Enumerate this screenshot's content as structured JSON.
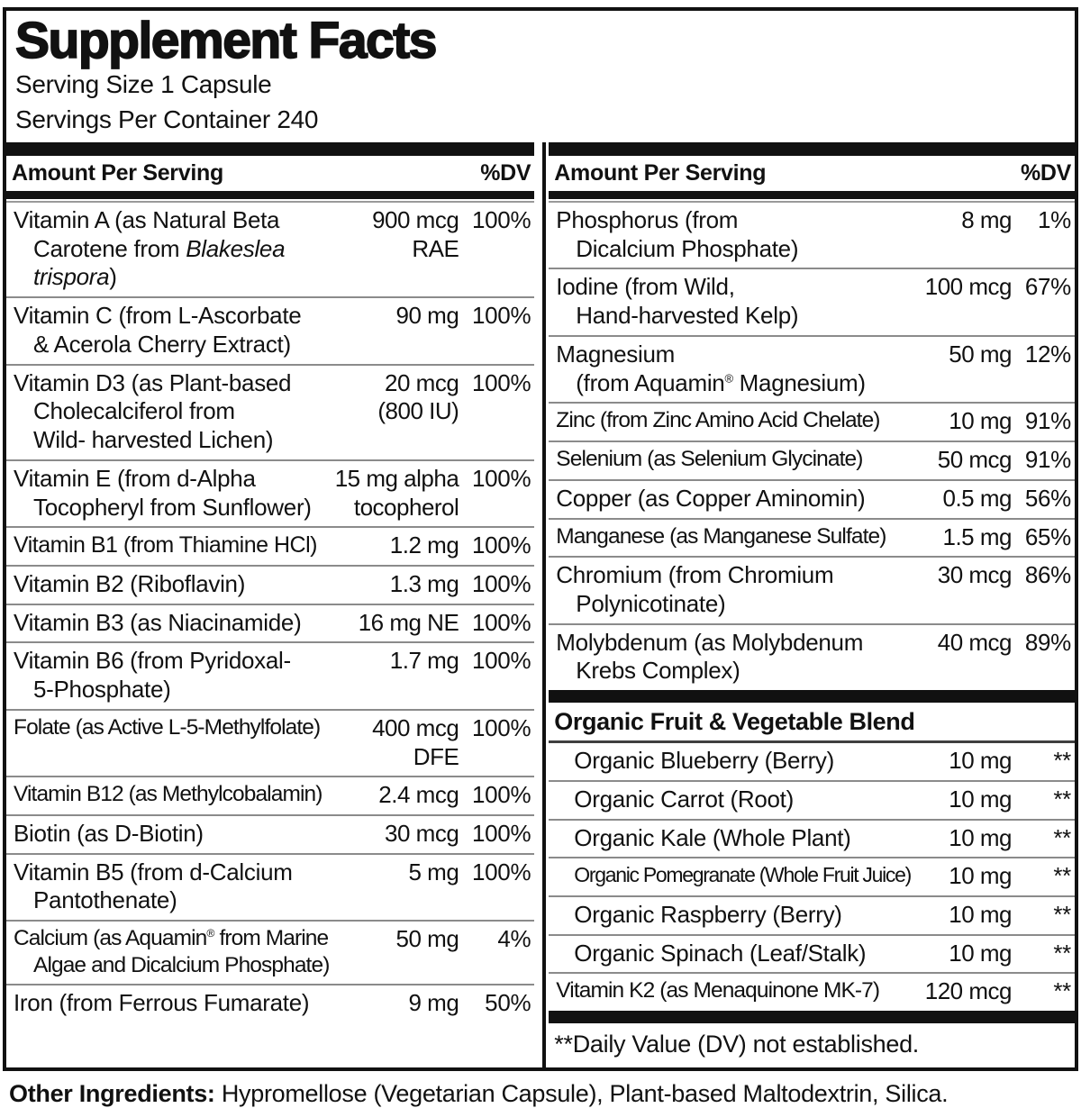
{
  "label": {
    "title": "Supplement Facts",
    "serving_size": "Serving Size 1 Capsule",
    "servings_per_container": "Servings Per Container 240",
    "header": {
      "amount_col": "Amount Per Serving",
      "dv_col": "%DV"
    },
    "left_column": [
      {
        "name": [
          {
            "t": "Vitamin A (as Natural Beta\nCarotene from "
          },
          {
            "t": "Blakeslea\ntrispora",
            "i": true
          },
          {
            "t": ")"
          }
        ],
        "amount": "900 mcg\nRAE",
        "dv": "100%"
      },
      {
        "name": [
          {
            "t": "Vitamin C (from L-Ascorbate\n& Acerola Cherry Extract)"
          }
        ],
        "amount": "90 mg",
        "dv": "100%"
      },
      {
        "name": [
          {
            "t": "Vitamin D3 (as Plant-based\nCholecalciferol from\nWild- harvested Lichen)"
          }
        ],
        "amount": "20 mcg\n(800 IU)",
        "dv": "100%"
      },
      {
        "name": [
          {
            "t": "Vitamin E (from d-Alpha\nTocopheryl from Sunflower)"
          }
        ],
        "amount": "15 mg alpha\ntocopherol",
        "dv": "100%"
      },
      {
        "name": [
          {
            "t": "Vitamin B1 (from Thiamine HCl)"
          }
        ],
        "amount": "1.2 mg",
        "dv": "100%"
      },
      {
        "name": [
          {
            "t": "Vitamin B2 (Riboflavin)"
          }
        ],
        "amount": "1.3 mg",
        "dv": "100%"
      },
      {
        "name": [
          {
            "t": "Vitamin B3 (as Niacinamide)"
          }
        ],
        "amount": "16 mg NE",
        "dv": "100%"
      },
      {
        "name": [
          {
            "t": "Vitamin B6 (from Pyridoxal-\n5-Phosphate)"
          }
        ],
        "amount": "1.7 mg",
        "dv": "100%"
      },
      {
        "name": [
          {
            "t": "Folate (as Active L-5-Methylfolate)"
          }
        ],
        "amount": "400 mcg\nDFE",
        "dv": "100%"
      },
      {
        "name": [
          {
            "t": "Vitamin B12 (as Methylcobalamin)"
          }
        ],
        "amount": "2.4 mcg",
        "dv": "100%"
      },
      {
        "name": [
          {
            "t": "Biotin (as D-Biotin)"
          }
        ],
        "amount": "30 mcg",
        "dv": "100%"
      },
      {
        "name": [
          {
            "t": "Vitamin B5 (from d-Calcium\nPantothenate)"
          }
        ],
        "amount": "5 mg",
        "dv": "100%"
      },
      {
        "name": [
          {
            "t": "Calcium (as Aquamin® from Marine\nAlgae and Dicalcium Phosphate)"
          }
        ],
        "amount": "50 mg",
        "dv": "4%"
      },
      {
        "name": [
          {
            "t": "Iron (from Ferrous Fumarate)"
          }
        ],
        "amount": "9 mg",
        "dv": "50%"
      }
    ],
    "right_column": [
      {
        "name": [
          {
            "t": "Phosphorus (from\nDicalcium Phosphate)"
          }
        ],
        "amount": "8 mg",
        "dv": "1%"
      },
      {
        "name": [
          {
            "t": "Iodine (from Wild,\nHand-harvested Kelp)"
          }
        ],
        "amount": "100 mcg",
        "dv": "67%"
      },
      {
        "name": [
          {
            "t": "Magnesium\n(from Aquamin® Magnesium)"
          }
        ],
        "amount": "50 mg",
        "dv": "12%"
      },
      {
        "name": [
          {
            "t": "Zinc (from Zinc Amino Acid Chelate)"
          }
        ],
        "amount": "10 mg",
        "dv": "91%"
      },
      {
        "name": [
          {
            "t": "Selenium (as Selenium Glycinate)"
          }
        ],
        "amount": "50 mcg",
        "dv": "91%"
      },
      {
        "name": [
          {
            "t": "Copper (as Copper Aminomin)"
          }
        ],
        "amount": "0.5 mg",
        "dv": "56%"
      },
      {
        "name": [
          {
            "t": "Manganese (as Manganese Sulfate)"
          }
        ],
        "amount": "1.5 mg",
        "dv": "65%"
      },
      {
        "name": [
          {
            "t": "Chromium (from Chromium\nPolynicotinate)"
          }
        ],
        "amount": "30 mcg",
        "dv": "86%"
      },
      {
        "name": [
          {
            "t": "Molybdenum (as Molybdenum\nKrebs Complex)"
          }
        ],
        "amount": "40 mcg",
        "dv": "89%"
      }
    ],
    "blend": {
      "heading": "Organic Fruit & Vegetable Blend",
      "rows": [
        {
          "name": [
            {
              "t": "Organic Blueberry (Berry)"
            }
          ],
          "amount": "10 mg",
          "dv": "**"
        },
        {
          "name": [
            {
              "t": "Organic Carrot (Root)"
            }
          ],
          "amount": "10 mg",
          "dv": "**"
        },
        {
          "name": [
            {
              "t": "Organic Kale (Whole Plant)"
            }
          ],
          "amount": "10 mg",
          "dv": "**"
        },
        {
          "name": [
            {
              "t": "Organic Pomegranate (Whole Fruit Juice)"
            }
          ],
          "amount": "10 mg",
          "dv": "**"
        },
        {
          "name": [
            {
              "t": "Organic Raspberry (Berry)"
            }
          ],
          "amount": "10 mg",
          "dv": "**"
        },
        {
          "name": [
            {
              "t": "Organic Spinach (Leaf/Stalk)"
            }
          ],
          "amount": "10 mg",
          "dv": "**"
        }
      ]
    },
    "k2_rows": [
      {
        "name": [
          {
            "t": "Vitamin K2 (as Menaquinone MK-7)"
          }
        ],
        "amount": "120 mcg",
        "dv": "**"
      }
    ],
    "footnote": "**Daily Value (DV) not established.",
    "other_ingredients_label": "Other Ingredients:",
    "other_ingredients_text": " Hypromellose (Vegetarian Capsule), Plant-based Maltodextrin, Silica.",
    "colors": {
      "text": "#111111",
      "bars": "#111111",
      "row_hairline": "#8b8b8b",
      "background": "#ffffff"
    }
  }
}
